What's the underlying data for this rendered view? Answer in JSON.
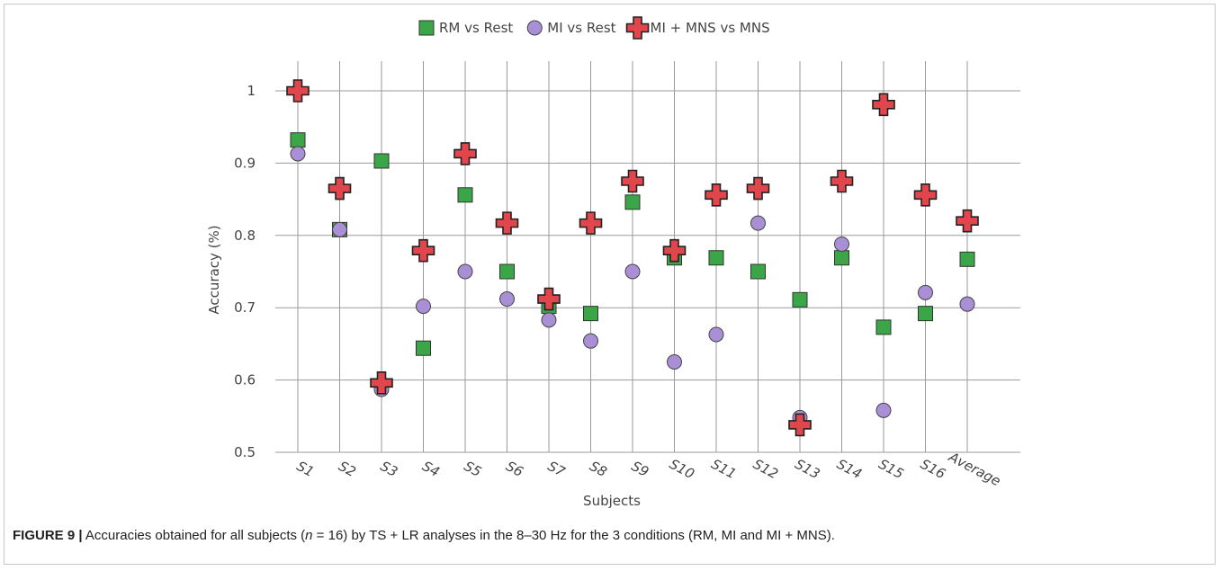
{
  "chart_data": {
    "type": "scatter",
    "categories": [
      "S1",
      "S2",
      "S3",
      "S4",
      "S5",
      "S6",
      "S7",
      "S8",
      "S9",
      "S10",
      "S11",
      "S12",
      "S13",
      "S14",
      "S15",
      "S16",
      "Average"
    ],
    "series": [
      {
        "name": "RM vs Rest",
        "marker": "square",
        "color": "#3aa648",
        "values": [
          0.932,
          0.808,
          0.903,
          0.644,
          0.856,
          0.75,
          0.702,
          0.692,
          0.846,
          0.769,
          0.769,
          0.75,
          0.711,
          0.769,
          0.673,
          0.692,
          0.767
        ]
      },
      {
        "name": "MI vs Rest",
        "marker": "circle",
        "color": "#a98fd6",
        "values": [
          0.913,
          0.808,
          0.587,
          0.702,
          0.75,
          0.712,
          0.683,
          0.654,
          0.75,
          0.625,
          0.663,
          0.817,
          0.548,
          0.788,
          0.558,
          0.721,
          0.705
        ]
      },
      {
        "name": "MI + MNS vs MNS",
        "marker": "cross",
        "color": "#e0464c",
        "values": [
          1.0,
          0.865,
          0.596,
          0.779,
          0.913,
          0.817,
          0.712,
          0.817,
          0.875,
          0.779,
          0.856,
          0.865,
          0.538,
          0.875,
          0.981,
          0.856,
          0.82
        ]
      }
    ],
    "xlabel": "Subjects",
    "ylabel": "Accuracy (%)",
    "ylim": [
      0.5,
      1.0
    ],
    "yticks": [
      "0.5",
      "0.6",
      "0.7",
      "0.8",
      "0.9",
      "1"
    ],
    "grid": true,
    "legend_position": "top-center"
  },
  "caption": {
    "figure_label": "FIGURE 9 |",
    "text_before_n": " Accuracies obtained for all subjects (",
    "n_symbol": "n",
    "text_after_n": " = 16) by TS + LR analyses in the 8–30 Hz for the 3 conditions (RM, MI and MI + MNS)."
  }
}
